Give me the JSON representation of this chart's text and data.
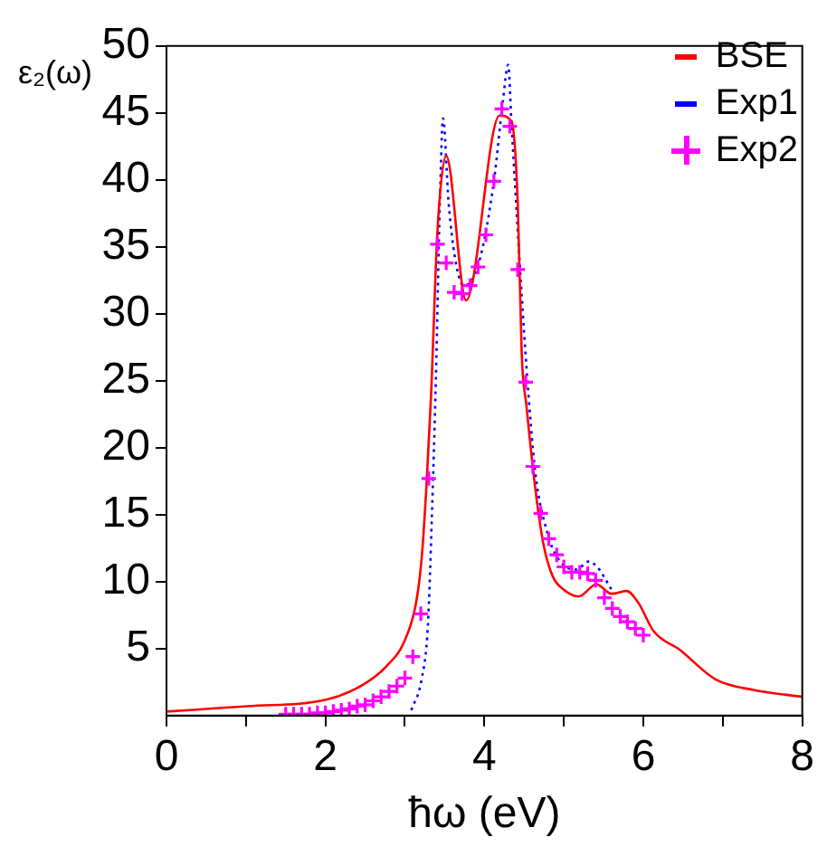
{
  "chart_data": {
    "type": "line",
    "xlabel": "ħω (eV)",
    "ylabel": "ε₂(ω)",
    "xlim": [
      0,
      8
    ],
    "xticks": [
      0,
      {
        "value": 1,
        "label": null
      },
      2,
      {
        "value": 3,
        "label": null
      },
      4,
      {
        "value": 5,
        "label": null
      },
      6,
      {
        "value": 7,
        "label": null
      },
      8
    ],
    "ylim": [
      0,
      50
    ],
    "yticks": [
      5,
      10,
      15,
      20,
      25,
      30,
      35,
      40,
      45,
      50
    ],
    "grid": false,
    "legend": "top right",
    "series": [
      {
        "name": "BSE",
        "color": "#ff0000",
        "line_style": "solid",
        "marker": "none",
        "x": [
          0,
          1.01,
          2.02,
          2.47,
          2.77,
          2.99,
          3.14,
          3.21,
          3.27,
          3.33,
          3.41,
          3.52,
          3.77,
          4.19,
          4.34,
          4.42,
          4.47,
          4.53,
          4.64,
          4.74,
          4.86,
          5.0,
          5.19,
          5.41,
          5.6,
          5.79,
          5.94,
          6.13,
          6.46,
          6.91,
          7.4,
          8.0
        ],
        "values": [
          0.3,
          0.7,
          1.2,
          2.3,
          3.7,
          5.5,
          8.4,
          11.7,
          17.0,
          24,
          36.2,
          41.8,
          31.0,
          44.8,
          44.4,
          38.3,
          27,
          23.1,
          17.0,
          12.9,
          10.4,
          9.4,
          8.9,
          9.8,
          9.1,
          9.3,
          8.4,
          6.3,
          4.9,
          2.7,
          1.9,
          1.4
        ]
      },
      {
        "name": "Exp1",
        "color": "#0000ff",
        "line_style": "dotted",
        "marker": "none",
        "x": [
          3.08,
          3.21,
          3.29,
          3.34,
          3.39,
          3.44,
          3.48,
          3.55,
          3.63,
          3.74,
          3.93,
          4.12,
          4.23,
          4.3,
          4.34,
          4.42,
          4.53,
          4.64,
          4.79,
          4.93,
          5.16,
          5.31,
          5.42,
          5.6
        ],
        "values": [
          0.4,
          2.7,
          6.8,
          15,
          25.2,
          38.3,
          44.6,
          38.3,
          34.2,
          32.1,
          33.8,
          39.9,
          45.7,
          48.6,
          44.4,
          36.2,
          26,
          18.2,
          13.7,
          11.7,
          10.9,
          11.5,
          11.1,
          9.4
        ]
      },
      {
        "name": "Exp2",
        "color": "#ff00ff",
        "type": "scatter",
        "marker": "cross",
        "x": [
          1.5,
          1.6,
          1.7,
          1.8,
          1.9,
          2.0,
          2.1,
          2.2,
          2.3,
          2.4,
          2.5,
          2.6,
          2.7,
          2.8,
          2.9,
          3.0,
          3.1,
          3.2,
          3.3,
          3.41,
          3.52,
          3.62,
          3.72,
          3.82,
          3.92,
          4.02,
          4.12,
          4.22,
          4.32,
          4.42,
          4.52,
          4.61,
          4.71,
          4.81,
          4.91,
          5.0,
          5.1,
          5.2,
          5.3,
          5.4,
          5.51,
          5.61,
          5.71,
          5.8,
          5.9,
          6.0
        ],
        "values": [
          0.1,
          0.1,
          0.1,
          0.1,
          0.2,
          0.2,
          0.3,
          0.4,
          0.5,
          0.7,
          0.8,
          1.1,
          1.4,
          1.8,
          2.2,
          2.8,
          4.4,
          7.6,
          17.7,
          35.2,
          33.8,
          31.6,
          31.5,
          32.1,
          33.5,
          35.9,
          39.9,
          45.3,
          44.0,
          33.3,
          24.9,
          18.6,
          15.1,
          13.2,
          12.0,
          11.1,
          10.7,
          10.7,
          10.6,
          10.1,
          8.8,
          8.0,
          7.4,
          7.0,
          6.5,
          6.0
        ]
      }
    ]
  }
}
